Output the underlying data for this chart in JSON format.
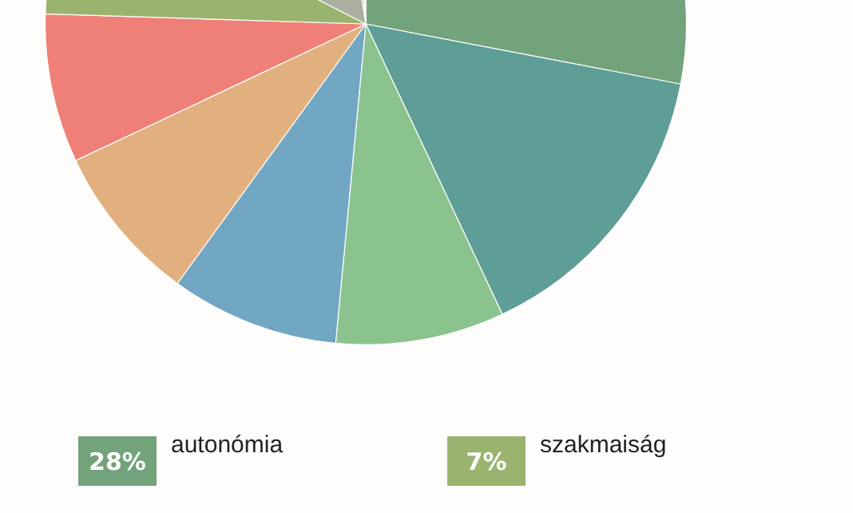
{
  "chart_data": {
    "type": "pie",
    "categories": [
      "autonómia",
      null,
      null,
      null,
      null,
      null,
      "szakmaiság",
      null,
      null,
      null,
      null
    ],
    "values": [
      28,
      15,
      8.5,
      8.5,
      8,
      7.5,
      7,
      15,
      1,
      0.8,
      0.7
    ],
    "value_labels": [
      "28%",
      null,
      null,
      null,
      null,
      null,
      "7%",
      null,
      null,
      null,
      null
    ],
    "colors": [
      "#72a37b",
      "#5e9e96",
      "#8bc38f",
      "#72a7c4",
      "#e2b07f",
      "#ef8078",
      "#9ab46f",
      "#a9b0a0",
      "#7d8599",
      "#c9c3de",
      "#2f8fd6"
    ],
    "legend": "bottom"
  }
}
